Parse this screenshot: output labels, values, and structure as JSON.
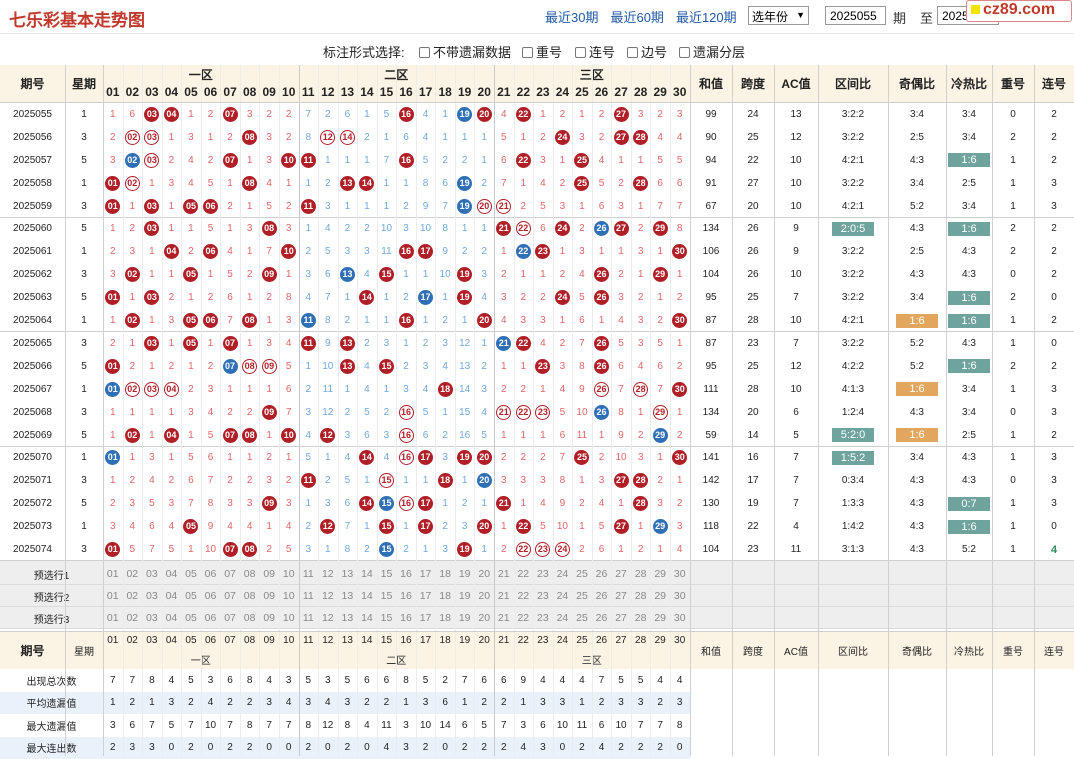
{
  "page": {
    "title": "七乐彩基本走势图",
    "nav": [
      "最近30期",
      "最近60期",
      "最近120期"
    ],
    "year_select": "选年份",
    "from": "2025055",
    "period_label": "期",
    "to_label": "至",
    "to": "2025074",
    "logo": "cz89.com"
  },
  "options": {
    "label": "标注形式选择:",
    "items": [
      "不带遗漏数据",
      "重号",
      "连号",
      "边号",
      "遗漏分层"
    ]
  },
  "header": {
    "period": "期号",
    "weekday": "星期",
    "zones": [
      "一区",
      "二区",
      "三区"
    ],
    "sum": "和值",
    "span": "跨度",
    "ac": "AC值",
    "zone_ratio": "区间比",
    "odd_even": "奇偶比",
    "hot_cold": "冷热比",
    "repeat": "重号",
    "consec": "连号"
  },
  "numbers": [
    "01",
    "02",
    "03",
    "04",
    "05",
    "06",
    "07",
    "08",
    "09",
    "10",
    "11",
    "12",
    "13",
    "14",
    "15",
    "16",
    "17",
    "18",
    "19",
    "20",
    "21",
    "22",
    "23",
    "24",
    "25",
    "26",
    "27",
    "28",
    "29",
    "30"
  ],
  "rows": [
    {
      "p": "2025055",
      "w": "1",
      "c": [
        "1",
        "6",
        "B03",
        "B04",
        "1",
        "2",
        "B07",
        "3",
        "2",
        "2",
        "7",
        "2",
        "6",
        "1",
        "5",
        "B16",
        "4",
        "1",
        "L19",
        "B20",
        "4",
        "B22",
        "1",
        "2",
        "1",
        "2",
        "B27",
        "3",
        "2",
        "3"
      ],
      "s": "99",
      "sp": "24",
      "ac": "13",
      "zr": "3:2:2",
      "oe": "3:4",
      "hc": "3:4",
      "rp": "0",
      "cs": "2"
    },
    {
      "p": "2025056",
      "w": "3",
      "c": [
        "2",
        "R02",
        "R03",
        "1",
        "3",
        "1",
        "2",
        "B08",
        "3",
        "2",
        "8",
        "R12",
        "R14",
        "2",
        "1",
        "6",
        "4",
        "1",
        "1",
        "1",
        "5",
        "1",
        "2",
        "B24",
        "3",
        "2",
        "B27",
        "B28",
        "4",
        "4"
      ],
      "s": "90",
      "sp": "25",
      "ac": "12",
      "zr": "3:2:2",
      "oe": "2:5",
      "hc": "3:4",
      "rp": "2",
      "cs": "2"
    },
    {
      "p": "2025057",
      "w": "5",
      "c": [
        "3",
        "L02",
        "R03",
        "2",
        "4",
        "2",
        "B07",
        "1",
        "3",
        "B10",
        "B11",
        "1",
        "1",
        "1",
        "7",
        "B16",
        "5",
        "2",
        "2",
        "1",
        "6",
        "B22",
        "3",
        "1",
        "B25",
        "4",
        "1",
        "1",
        "5",
        "5"
      ],
      "s": "94",
      "sp": "22",
      "ac": "10",
      "zr": "4:2:1",
      "oe": "4:3",
      "hc": "T1:6",
      "rp": "1",
      "cs": "2"
    },
    {
      "p": "2025058",
      "w": "1",
      "c": [
        "B01",
        "R02",
        "1",
        "3",
        "4",
        "5",
        "1",
        "B08",
        "4",
        "1",
        "1",
        "2",
        "B13",
        "B14",
        "1",
        "1",
        "8",
        "6",
        "L19",
        "2",
        "7",
        "1",
        "4",
        "2",
        "B25",
        "5",
        "2",
        "B28",
        "6",
        "6"
      ],
      "s": "91",
      "sp": "27",
      "ac": "10",
      "zr": "3:2:2",
      "oe": "3:4",
      "hc": "2:5",
      "rp": "1",
      "cs": "3"
    },
    {
      "p": "2025059",
      "w": "3",
      "c": [
        "B01",
        "1",
        "B03",
        "1",
        "B05",
        "B06",
        "2",
        "1",
        "5",
        "2",
        "B11",
        "3",
        "1",
        "1",
        "1",
        "2",
        "9",
        "7",
        "L19",
        "R20",
        "R21",
        "2",
        "5",
        "3",
        "1",
        "6",
        "3",
        "1",
        "7",
        "7"
      ],
      "s": "67",
      "sp": "20",
      "ac": "10",
      "zr": "4:2:1",
      "oe": "5:2",
      "hc": "3:4",
      "rp": "1",
      "cs": "3"
    },
    {
      "p": "2025060",
      "w": "5",
      "c": [
        "1",
        "2",
        "B03",
        "1",
        "1",
        "5",
        "1",
        "3",
        "B08",
        "3",
        "1",
        "4",
        "2",
        "2",
        "10",
        "3",
        "10",
        "8",
        "1",
        "1",
        "B21",
        "R22",
        "6",
        "B24",
        "2",
        "L26",
        "B27",
        "2",
        "B29",
        "8"
      ],
      "s": "134",
      "sp": "26",
      "ac": "9",
      "zr": "T2:0:5",
      "oe": "4:3",
      "hc": "T1:6",
      "rp": "2",
      "cs": "2"
    },
    {
      "p": "2025061",
      "w": "1",
      "c": [
        "2",
        "3",
        "1",
        "B04",
        "2",
        "B06",
        "4",
        "1",
        "7",
        "B10",
        "2",
        "5",
        "3",
        "3",
        "11",
        "B16",
        "B17",
        "9",
        "2",
        "2",
        "1",
        "L22",
        "B23",
        "1",
        "3",
        "1",
        "1",
        "3",
        "1",
        "B30"
      ],
      "s": "106",
      "sp": "26",
      "ac": "9",
      "zr": "3:2:2",
      "oe": "2:5",
      "hc": "4:3",
      "rp": "2",
      "cs": "2"
    },
    {
      "p": "2025062",
      "w": "3",
      "c": [
        "3",
        "B02",
        "1",
        "1",
        "B05",
        "1",
        "5",
        "2",
        "B09",
        "1",
        "3",
        "6",
        "L13",
        "4",
        "B15",
        "1",
        "1",
        "10",
        "B19",
        "3",
        "2",
        "1",
        "1",
        "2",
        "4",
        "B26",
        "2",
        "1",
        "B29",
        "1"
      ],
      "s": "104",
      "sp": "26",
      "ac": "10",
      "zr": "3:2:2",
      "oe": "4:3",
      "hc": "4:3",
      "rp": "0",
      "cs": "2"
    },
    {
      "p": "2025063",
      "w": "5",
      "c": [
        "B01",
        "1",
        "B03",
        "2",
        "1",
        "2",
        "6",
        "1",
        "2",
        "8",
        "4",
        "7",
        "1",
        "B14",
        "1",
        "2",
        "L17",
        "1",
        "B19",
        "4",
        "3",
        "2",
        "2",
        "B24",
        "5",
        "B26",
        "3",
        "2",
        "1",
        "2"
      ],
      "s": "95",
      "sp": "25",
      "ac": "7",
      "zr": "3:2:2",
      "oe": "3:4",
      "hc": "T1:6",
      "rp": "2",
      "cs": "0"
    },
    {
      "p": "2025064",
      "w": "1",
      "c": [
        "1",
        "B02",
        "1",
        "3",
        "B05",
        "B06",
        "7",
        "B08",
        "1",
        "3",
        "L11",
        "8",
        "2",
        "1",
        "1",
        "B16",
        "1",
        "2",
        "1",
        "B20",
        "4",
        "3",
        "3",
        "1",
        "6",
        "1",
        "4",
        "3",
        "2",
        "B30"
      ],
      "s": "87",
      "sp": "28",
      "ac": "10",
      "zr": "4:2:1",
      "oe": "G1:6",
      "hc": "T1:6",
      "rp": "1",
      "cs": "2"
    },
    {
      "p": "2025065",
      "w": "3",
      "c": [
        "2",
        "1",
        "B03",
        "1",
        "B05",
        "1",
        "B07",
        "1",
        "3",
        "4",
        "B11",
        "9",
        "B13",
        "2",
        "3",
        "1",
        "2",
        "3",
        "12",
        "1",
        "L21",
        "B22",
        "4",
        "2",
        "7",
        "B26",
        "5",
        "3",
        "5",
        "1"
      ],
      "s": "87",
      "sp": "23",
      "ac": "7",
      "zr": "3:2:2",
      "oe": "5:2",
      "hc": "4:3",
      "rp": "1",
      "cs": "0"
    },
    {
      "p": "2025066",
      "w": "5",
      "c": [
        "B01",
        "2",
        "1",
        "2",
        "1",
        "2",
        "L07",
        "R08",
        "R09",
        "5",
        "1",
        "10",
        "B13",
        "4",
        "B15",
        "2",
        "3",
        "4",
        "13",
        "2",
        "1",
        "1",
        "B23",
        "3",
        "8",
        "B26",
        "6",
        "4",
        "6",
        "2"
      ],
      "s": "95",
      "sp": "25",
      "ac": "12",
      "zr": "4:2:2",
      "oe": "5:2",
      "hc": "T1:6",
      "rp": "2",
      "cs": "2"
    },
    {
      "p": "2025067",
      "w": "1",
      "c": [
        "L01",
        "R02",
        "R03",
        "R04",
        "2",
        "3",
        "1",
        "1",
        "1",
        "6",
        "2",
        "11",
        "1",
        "4",
        "1",
        "3",
        "4",
        "B18",
        "14",
        "3",
        "2",
        "2",
        "1",
        "4",
        "9",
        "R26",
        "7",
        "R28",
        "7",
        "B30"
      ],
      "s": "111",
      "sp": "28",
      "ac": "10",
      "zr": "4:1:3",
      "oe": "G1:6",
      "hc": "3:4",
      "rp": "1",
      "cs": "3"
    },
    {
      "p": "2025068",
      "w": "3",
      "c": [
        "1",
        "1",
        "1",
        "1",
        "3",
        "4",
        "2",
        "2",
        "B09",
        "7",
        "3",
        "12",
        "2",
        "5",
        "2",
        "R16",
        "5",
        "1",
        "15",
        "4",
        "R21",
        "R22",
        "R23",
        "5",
        "10",
        "L26",
        "8",
        "1",
        "R29",
        "1"
      ],
      "s": "134",
      "sp": "20",
      "ac": "6",
      "zr": "1:2:4",
      "oe": "4:3",
      "hc": "3:4",
      "rp": "0",
      "cs": "3"
    },
    {
      "p": "2025069",
      "w": "5",
      "c": [
        "1",
        "B02",
        "1",
        "B04",
        "1",
        "5",
        "B07",
        "B08",
        "1",
        "B10",
        "4",
        "B12",
        "3",
        "6",
        "3",
        "R16",
        "6",
        "2",
        "16",
        "5",
        "1",
        "1",
        "1",
        "6",
        "11",
        "1",
        "9",
        "2",
        "L29",
        "2"
      ],
      "s": "59",
      "sp": "14",
      "ac": "5",
      "zr": "T5:2:0",
      "oe": "G1:6",
      "hc": "2:5",
      "rp": "1",
      "cs": "2"
    },
    {
      "p": "2025070",
      "w": "1",
      "c": [
        "L01",
        "1",
        "3",
        "1",
        "5",
        "6",
        "1",
        "1",
        "2",
        "1",
        "5",
        "1",
        "4",
        "B14",
        "4",
        "R16",
        "B17",
        "3",
        "B19",
        "B20",
        "2",
        "2",
        "2",
        "7",
        "B25",
        "2",
        "10",
        "3",
        "1",
        "B30"
      ],
      "s": "141",
      "sp": "16",
      "ac": "7",
      "zr": "T1:5:2",
      "oe": "3:4",
      "hc": "4:3",
      "rp": "1",
      "cs": "3"
    },
    {
      "p": "2025071",
      "w": "3",
      "c": [
        "1",
        "2",
        "4",
        "2",
        "6",
        "7",
        "2",
        "2",
        "3",
        "2",
        "B11",
        "2",
        "5",
        "1",
        "R15",
        "1",
        "1",
        "B18",
        "1",
        "L20",
        "3",
        "3",
        "3",
        "8",
        "1",
        "3",
        "B27",
        "B28",
        "2",
        "1"
      ],
      "s": "142",
      "sp": "17",
      "ac": "7",
      "zr": "0:3:4",
      "oe": "4:3",
      "hc": "4:3",
      "rp": "0",
      "cs": "3"
    },
    {
      "p": "2025072",
      "w": "5",
      "c": [
        "2",
        "3",
        "5",
        "3",
        "7",
        "8",
        "3",
        "3",
        "B09",
        "3",
        "1",
        "3",
        "6",
        "B14",
        "L15",
        "R16",
        "B17",
        "1",
        "2",
        "1",
        "B21",
        "1",
        "4",
        "9",
        "2",
        "4",
        "1",
        "B28",
        "3",
        "2"
      ],
      "s": "130",
      "sp": "19",
      "ac": "7",
      "zr": "1:3:3",
      "oe": "4:3",
      "hc": "T0:7",
      "rp": "1",
      "cs": "3"
    },
    {
      "p": "2025073",
      "w": "1",
      "c": [
        "3",
        "4",
        "6",
        "4",
        "B05",
        "9",
        "4",
        "4",
        "1",
        "4",
        "2",
        "B12",
        "7",
        "1",
        "B15",
        "1",
        "B17",
        "2",
        "3",
        "B20",
        "1",
        "B22",
        "5",
        "10",
        "1",
        "5",
        "B27",
        "1",
        "L29",
        "3"
      ],
      "s": "118",
      "sp": "22",
      "ac": "4",
      "zr": "1:4:2",
      "oe": "4:3",
      "hc": "T1:6",
      "rp": "1",
      "cs": "0"
    },
    {
      "p": "2025074",
      "w": "3",
      "c": [
        "B01",
        "5",
        "7",
        "5",
        "1",
        "10",
        "B07",
        "B08",
        "2",
        "5",
        "3",
        "1",
        "8",
        "2",
        "L15",
        "2",
        "1",
        "3",
        "B19",
        "1",
        "2",
        "R22",
        "R23",
        "R24",
        "2",
        "6",
        "1",
        "2",
        "1",
        "4"
      ],
      "s": "104",
      "sp": "23",
      "ac": "11",
      "zr": "3:1:3",
      "oe": "4:3",
      "hc": "5:2",
      "rp": "1",
      "cs": "4"
    }
  ],
  "preselect": [
    "预选行1",
    "预选行2",
    "预选行3"
  ],
  "stats": [
    {
      "label": "出现总次数",
      "v": [
        "7",
        "7",
        "8",
        "4",
        "5",
        "3",
        "6",
        "8",
        "4",
        "3",
        "5",
        "3",
        "5",
        "6",
        "6",
        "8",
        "5",
        "2",
        "7",
        "6",
        "6",
        "9",
        "4",
        "4",
        "4",
        "7",
        "5",
        "5",
        "4",
        "4"
      ]
    },
    {
      "label": "平均遗漏值",
      "v": [
        "1",
        "2",
        "1",
        "3",
        "2",
        "4",
        "2",
        "2",
        "3",
        "4",
        "3",
        "4",
        "3",
        "2",
        "2",
        "1",
        "3",
        "6",
        "1",
        "2",
        "2",
        "1",
        "3",
        "3",
        "1",
        "2",
        "3",
        "3",
        "2",
        "3"
      ]
    },
    {
      "label": "最大遗漏值",
      "v": [
        "3",
        "6",
        "7",
        "5",
        "7",
        "10",
        "7",
        "8",
        "7",
        "7",
        "8",
        "12",
        "8",
        "4",
        "11",
        "3",
        "10",
        "14",
        "6",
        "5",
        "7",
        "3",
        "6",
        "10",
        "11",
        "6",
        "10",
        "7",
        "7",
        "8"
      ]
    },
    {
      "label": "最大连出数",
      "v": [
        "2",
        "3",
        "3",
        "0",
        "2",
        "0",
        "2",
        "2",
        "0",
        "0",
        "2",
        "0",
        "2",
        "0",
        "4",
        "3",
        "2",
        "0",
        "2",
        "2",
        "2",
        "4",
        "3",
        "0",
        "2",
        "4",
        "2",
        "2",
        "2",
        "0"
      ]
    }
  ]
}
